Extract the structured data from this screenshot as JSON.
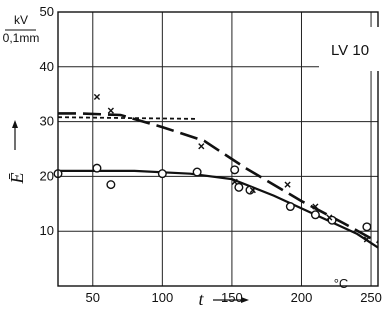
{
  "chart_data": {
    "type": "line",
    "title": "",
    "badge": "LV 10",
    "xlabel": "t",
    "xunit": "°C",
    "ylabel": "Ē",
    "yunit_top": "kV",
    "yunit_bottom": "0,1mm",
    "xlim": [
      25,
      255
    ],
    "ylim": [
      0,
      50
    ],
    "x_ticks": [
      50,
      100,
      150,
      200,
      250
    ],
    "y_ticks": [
      10,
      20,
      30,
      40,
      50
    ],
    "grid": true,
    "series": [
      {
        "style": "dashed",
        "points": [
          [
            25,
            31.5
          ],
          [
            40,
            31.5
          ],
          [
            70,
            31.2
          ],
          [
            100,
            29.0
          ],
          [
            130,
            26.5
          ],
          [
            160,
            21.5
          ],
          [
            200,
            15.5
          ],
          [
            230,
            11.5
          ],
          [
            255,
            8.0
          ]
        ]
      },
      {
        "style": "dotted",
        "points": [
          [
            25,
            30.8
          ],
          [
            125,
            30.5
          ]
        ]
      },
      {
        "style": "solid",
        "points": [
          [
            25,
            21.0
          ],
          [
            80,
            21.0
          ],
          [
            120,
            20.5
          ],
          [
            150,
            19.5
          ],
          [
            180,
            16.5
          ],
          [
            210,
            13.0
          ],
          [
            240,
            9.5
          ],
          [
            255,
            7.0
          ]
        ]
      }
    ],
    "markers_x": [
      [
        53,
        34.5
      ],
      [
        63,
        32.0
      ],
      [
        128,
        25.5
      ],
      [
        152,
        19.0
      ],
      [
        165,
        17.5
      ],
      [
        190,
        18.5
      ],
      [
        210,
        14.5
      ],
      [
        220,
        12.5
      ],
      [
        247,
        8.5
      ]
    ],
    "markers_o": [
      [
        25,
        20.5
      ],
      [
        53,
        21.5
      ],
      [
        63,
        18.5
      ],
      [
        100,
        20.5
      ],
      [
        125,
        20.8
      ],
      [
        152,
        21.2
      ],
      [
        155,
        18.0
      ],
      [
        163,
        17.5
      ],
      [
        192,
        14.5
      ],
      [
        210,
        13.0
      ],
      [
        222,
        12.0
      ],
      [
        247,
        10.8
      ]
    ]
  }
}
